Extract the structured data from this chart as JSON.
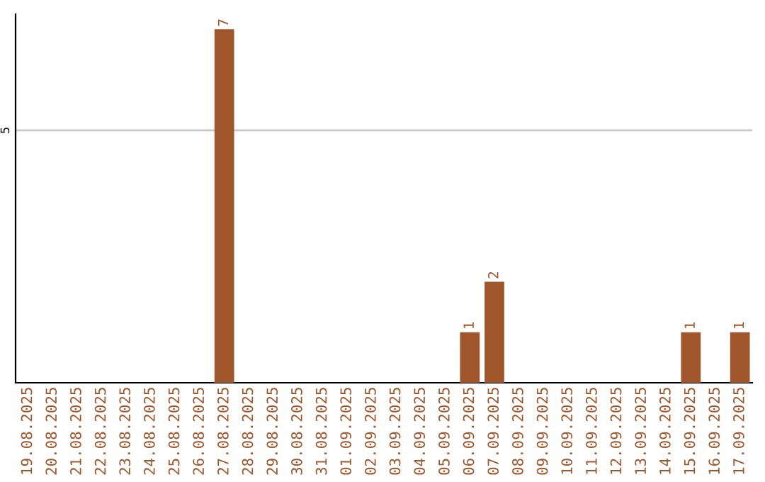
{
  "chart_data": {
    "type": "bar",
    "categories": [
      "19.08.2025",
      "20.08.2025",
      "21.08.2025",
      "22.08.2025",
      "23.08.2025",
      "24.08.2025",
      "25.08.2025",
      "26.08.2025",
      "27.08.2025",
      "28.08.2025",
      "29.08.2025",
      "30.08.2025",
      "31.08.2025",
      "01.09.2025",
      "02.09.2025",
      "03.09.2025",
      "04.09.2025",
      "05.09.2025",
      "06.09.2025",
      "07.09.2025",
      "08.09.2025",
      "09.09.2025",
      "10.09.2025",
      "11.09.2025",
      "12.09.2025",
      "13.09.2025",
      "14.09.2025",
      "15.09.2025",
      "16.09.2025",
      "17.09.2025"
    ],
    "values": [
      0,
      0,
      0,
      0,
      0,
      0,
      0,
      0,
      7,
      0,
      0,
      0,
      0,
      0,
      0,
      0,
      0,
      0,
      1,
      2,
      0,
      0,
      0,
      0,
      0,
      0,
      0,
      1,
      0,
      1
    ],
    "value_labels": [
      null,
      null,
      null,
      null,
      null,
      null,
      null,
      null,
      "7",
      null,
      null,
      null,
      null,
      null,
      null,
      null,
      null,
      null,
      "1",
      "2",
      null,
      null,
      null,
      null,
      null,
      null,
      null,
      "1",
      null,
      "1"
    ],
    "color": "#a0562a",
    "ylim": [
      0,
      7.3
    ],
    "yticks": [
      5
    ],
    "grid": "y"
  }
}
